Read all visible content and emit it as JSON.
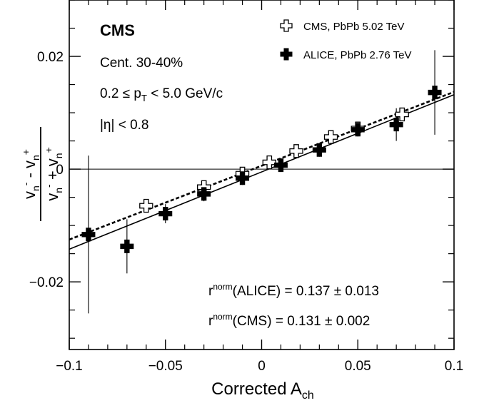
{
  "chart_data": {
    "type": "scatter",
    "experiment": "CMS",
    "annotations": [
      "Cent. 30-40%",
      "0.2 ≤ p_T < 5.0 GeV/c",
      "|η| < 0.8"
    ],
    "xlabel": "Corrected A_ch",
    "ylabel": "(v_n^- - v_n^+) / (v_n^- + v_n^+)",
    "xlim": [
      -0.1,
      0.1
    ],
    "ylim": [
      -0.032,
      0.03
    ],
    "x_ticks": [
      -0.1,
      -0.05,
      0,
      0.05,
      0.1
    ],
    "x_tick_labels": [
      "−0.1",
      "−0.05",
      "0",
      "0.05",
      "0.1"
    ],
    "y_ticks": [
      -0.02,
      0,
      0.02
    ],
    "y_tick_labels": [
      "−0.02",
      "0",
      "0.02"
    ],
    "grid": false,
    "legend_position": "top-right",
    "series": [
      {
        "name": "CMS, PbPb 5.02 TeV",
        "marker": "open-cross",
        "fit_line": "dashed",
        "fit_slope": 0.131,
        "fit_intercept": 0.0006,
        "x": [
          -0.06,
          -0.03,
          -0.01,
          0.004,
          0.018,
          0.036,
          0.05,
          0.073
        ],
        "y": [
          -0.0065,
          -0.0032,
          -0.0008,
          0.0012,
          0.0032,
          0.0057,
          0.0072,
          0.0097
        ],
        "yerr": [
          0.0004,
          0.0004,
          0.0004,
          0.0004,
          0.0004,
          0.0005,
          0.0005,
          0.0007
        ]
      },
      {
        "name": "ALICE, PbPb 2.76 TeV",
        "marker": "filled-cross",
        "fit_line": "solid",
        "fit_slope": 0.137,
        "fit_intercept": -0.0005,
        "x": [
          -0.09,
          -0.07,
          -0.05,
          -0.03,
          -0.01,
          0.01,
          0.03,
          0.05,
          0.07,
          0.09
        ],
        "y": [
          -0.0116,
          -0.0137,
          -0.0079,
          -0.0044,
          -0.0016,
          0.0007,
          0.0034,
          0.007,
          0.0079,
          0.0136
        ],
        "yerr": [
          0.014,
          0.0048,
          0.0017,
          0.0013,
          0.0012,
          0.0012,
          0.0012,
          0.0012,
          0.0029,
          0.0075
        ]
      }
    ],
    "results": [
      {
        "label": "r^norm(ALICE) = 0.137 ± 0.013",
        "base": "r",
        "sup": "norm",
        "text": "(ALICE) = 0.137 ± 0.013"
      },
      {
        "label": "r^norm(CMS) = 0.131 ± 0.002",
        "base": "r",
        "sup": "norm",
        "text": "(CMS) = 0.131 ± 0.002"
      }
    ]
  }
}
